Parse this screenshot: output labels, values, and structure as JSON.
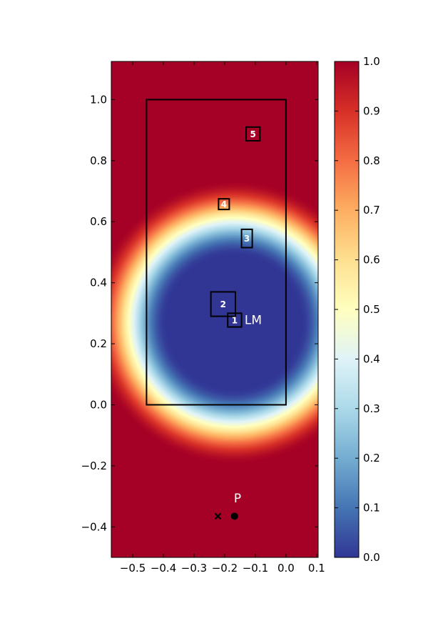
{
  "chart_data": {
    "type": "heatmap",
    "title": "",
    "xlabel": "",
    "ylabel": "",
    "xlim": [
      -0.57,
      0.105
    ],
    "ylim": [
      -0.5,
      1.125
    ],
    "xticks": [
      -0.5,
      -0.4,
      -0.3,
      -0.2,
      -0.1,
      0.0,
      0.1
    ],
    "xtick_labels": [
      "−0.5",
      "−0.4",
      "−0.3",
      "−0.2",
      "−0.1",
      "0.0",
      "0.1"
    ],
    "yticks": [
      -0.4,
      -0.2,
      0.0,
      0.2,
      0.4,
      0.6,
      0.8,
      1.0
    ],
    "ytick_labels": [
      "−0.4",
      "−0.2",
      "0.0",
      "0.2",
      "0.4",
      "0.6",
      "0.8",
      "1.0"
    ],
    "field": {
      "description_center": [
        -0.17,
        0.27
      ],
      "center": [
        -0.17,
        0.27
      ],
      "inner_radius": 0.22,
      "outer_radius": 0.47,
      "vmin": 0.0,
      "vmax": 1.0
    },
    "colorbar": {
      "ticks": [
        0.0,
        0.1,
        0.2,
        0.3,
        0.4,
        0.5,
        0.6,
        0.7,
        0.8,
        0.9,
        1.0
      ],
      "tick_labels": [
        "0.0",
        "0.1",
        "0.2",
        "0.3",
        "0.4",
        "0.5",
        "0.6",
        "0.7",
        "0.8",
        "0.9",
        "1.0"
      ],
      "colormap": [
        "#313695",
        "#4575b4",
        "#74add1",
        "#abd9e9",
        "#e0f3f8",
        "#ffffbf",
        "#fee090",
        "#fdae61",
        "#f46d43",
        "#d73027",
        "#a50026"
      ]
    },
    "outer_rect": {
      "x0": -0.455,
      "x1": 0.0,
      "y0": 0.0,
      "y1": 1.0
    },
    "boxes": [
      {
        "label": "1",
        "x0": -0.19,
        "x1": -0.145,
        "y0": 0.255,
        "y1": 0.3
      },
      {
        "label": "2",
        "x0": -0.245,
        "x1": -0.165,
        "y0": 0.29,
        "y1": 0.37
      },
      {
        "label": "3",
        "x0": -0.145,
        "x1": -0.11,
        "y0": 0.515,
        "y1": 0.575
      },
      {
        "label": "4",
        "x0": -0.22,
        "x1": -0.185,
        "y0": 0.64,
        "y1": 0.675
      },
      {
        "label": "5",
        "x0": -0.13,
        "x1": -0.085,
        "y0": 0.865,
        "y1": 0.91
      }
    ],
    "annotations": [
      {
        "text": "LM",
        "x": -0.135,
        "y": 0.265
      },
      {
        "text": "P",
        "x": -0.17,
        "y": -0.32
      }
    ],
    "points": [
      {
        "marker": "circle",
        "x": -0.168,
        "y": -0.365
      },
      {
        "marker": "x",
        "x": -0.222,
        "y": -0.365
      }
    ]
  }
}
